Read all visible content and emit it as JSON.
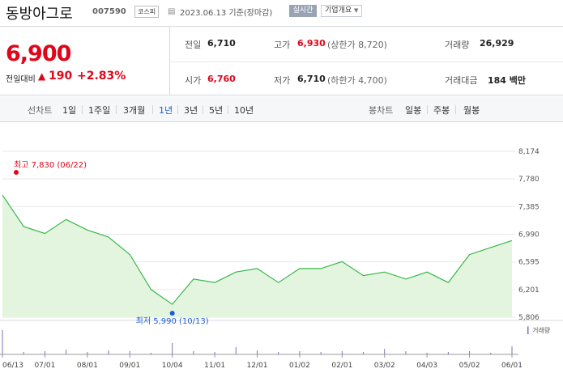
{
  "header": {
    "stock_name": "동방아그로",
    "stock_code": "007590",
    "market": "코스피",
    "date_text": "2023.06.13 기준(장마감)",
    "realtime_button": "실시간",
    "company_info_button": "기업개요"
  },
  "quote": {
    "price": "6,900",
    "change_label": "전일대비",
    "change_value": "190",
    "change_percent": "+2.83%",
    "prev_close_label": "전일",
    "prev_close_value": "6,710",
    "high_label": "고가",
    "high_value": "6,930",
    "upper_limit_text": "(상한가 8,720)",
    "volume_label": "거래량",
    "volume_value": "26,929",
    "open_label": "시가",
    "open_value": "6,760",
    "low_label": "저가",
    "low_value": "6,710",
    "lower_limit_text": "(하한가 4,700)",
    "trade_value_label": "거래대금",
    "trade_value_value": "184 백만"
  },
  "toolbar": {
    "line_chart_title": "선차트",
    "periods": [
      "1일",
      "1주일",
      "3개월",
      "1년",
      "3년",
      "5년",
      "10년"
    ],
    "selected_period": "1년",
    "candle_chart_title": "봉차트",
    "candles": [
      "일봉",
      "주봉",
      "월봉"
    ]
  },
  "chart_data": {
    "type": "area",
    "y_ticks": [
      "8,174",
      "7,780",
      "7,385",
      "6,990",
      "6,595",
      "6,201",
      "5,806"
    ],
    "ylim": [
      5806,
      8174
    ],
    "x_ticks": [
      "06/13",
      "07/01",
      "08/01",
      "09/01",
      "10/04",
      "11/01",
      "12/01",
      "01/02",
      "02/01",
      "03/02",
      "04/03",
      "05/02",
      "06/01"
    ],
    "x": [
      "06/13",
      "07/01",
      "07/15",
      "08/01",
      "08/15",
      "09/01",
      "09/15",
      "10/04",
      "10/13",
      "11/01",
      "11/15",
      "12/01",
      "12/15",
      "01/02",
      "01/15",
      "02/01",
      "02/15",
      "03/02",
      "03/15",
      "04/03",
      "04/15",
      "05/02",
      "05/15",
      "06/01",
      "06/13"
    ],
    "values": [
      7550,
      7100,
      7000,
      7200,
      7050,
      6950,
      6700,
      6200,
      5990,
      6350,
      6300,
      6450,
      6500,
      6300,
      6500,
      6500,
      6600,
      6400,
      6450,
      6350,
      6450,
      6300,
      6700,
      6800,
      6900
    ],
    "max_label": "최고 7,830 (06/22)",
    "min_label": "최저 5,990 (10/13)",
    "max_value": 7830,
    "min_value": 5990,
    "max_date": "06/22",
    "min_date": "10/13",
    "volume_label": "거래량",
    "colors": {
      "line": "#39b74a",
      "fill": "#e4f5df",
      "max": "#e0061a",
      "min": "#1d5bd6",
      "volume": "#7f72b8"
    }
  }
}
